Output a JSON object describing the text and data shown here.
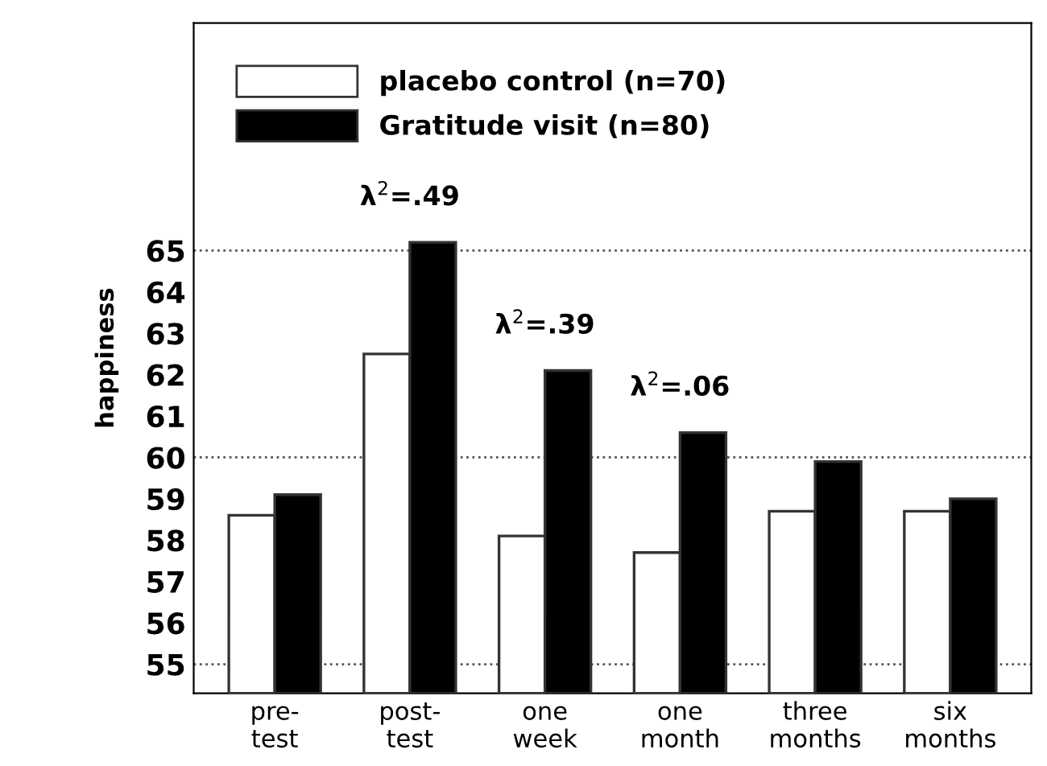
{
  "chart_data": {
    "type": "bar",
    "ylabel": "happiness",
    "categories": [
      "pre-\ntest",
      "post-\ntest",
      "one\nweek",
      "one\nmonth",
      "three\nmonths",
      "six\nmonths"
    ],
    "series": [
      {
        "name": "placebo control (n=70)",
        "color": "#ffffff",
        "values": [
          58.6,
          62.5,
          58.1,
          57.7,
          58.7,
          58.7
        ]
      },
      {
        "name": "Gratitude visit (n=80)",
        "color": "#000000",
        "values": [
          59.1,
          65.2,
          62.1,
          60.6,
          59.9,
          59.0
        ]
      }
    ],
    "ylim": [
      54.3,
      70.5
    ],
    "yticks": [
      55,
      56,
      57,
      58,
      59,
      60,
      61,
      62,
      63,
      64,
      65
    ],
    "ref_lines": [
      {
        "axis": "y",
        "value": 55,
        "line_style": "dotted",
        "color": "#555555"
      },
      {
        "axis": "y",
        "value": 60,
        "line_style": "dotted",
        "color": "#555555"
      },
      {
        "axis": "y",
        "value": 65,
        "line_style": "dotted",
        "color": "#555555"
      }
    ],
    "annotations": [
      {
        "text": "λ$^{2}$=.49",
        "x": "post-\ntest",
        "y": 65.2
      },
      {
        "text": "λ$^{2}$=.39",
        "x": "one\nweek",
        "y": 62.1
      },
      {
        "text": "λ$^{2}$=.06",
        "x": "one\nmonth",
        "y": 60.6
      }
    ],
    "legend": "top left",
    "grid": false
  }
}
